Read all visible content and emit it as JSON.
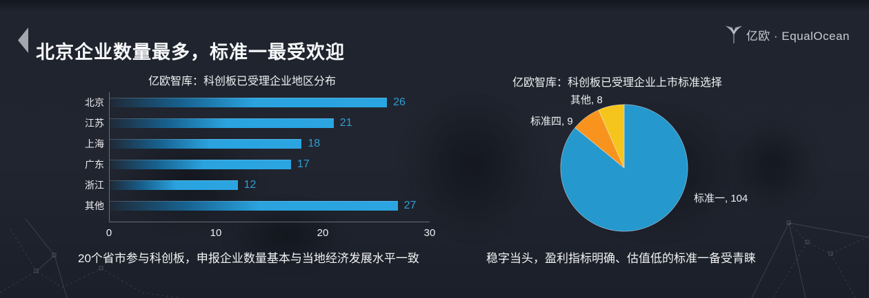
{
  "slide": {
    "title": "北京企业数量最多，标准一最受欢迎",
    "logo_text": "亿欧 · EqualOcean"
  },
  "chart_data": [
    {
      "type": "bar",
      "orientation": "horizontal",
      "title": "亿欧智库：科创板已受理企业地区分布",
      "categories": [
        "北京",
        "江苏",
        "上海",
        "广东",
        "浙江",
        "其他"
      ],
      "values": [
        26,
        21,
        18,
        17,
        12,
        27
      ],
      "xlim": [
        0,
        30
      ],
      "xticks": [
        "0",
        "10",
        "20",
        "30"
      ],
      "bar_color": "#2AA3DF",
      "value_label_color": "#2F9FD6",
      "caption": "20个省市参与科创板，申报企业数量基本与当地经济发展水平一致"
    },
    {
      "type": "pie",
      "title": "亿欧智库：科创板已受理企业上市标准选择",
      "start_angle_deg": 0,
      "direction": "clockwise",
      "slices": [
        {
          "label": "标准一",
          "value": 104,
          "color": "#2598CE",
          "label_text": "标准一, 104"
        },
        {
          "label": "标准四",
          "value": 9,
          "color": "#F8941D",
          "label_text": "标准四, 9"
        },
        {
          "label": "其他",
          "value": 8,
          "color": "#F5C51D",
          "label_text": "其他, 8"
        }
      ],
      "slice_border_color": "rgba(245,248,250,0.55)",
      "caption": "稳字当头，盈利指标明确、估值低的标准一备受青睐"
    }
  ]
}
